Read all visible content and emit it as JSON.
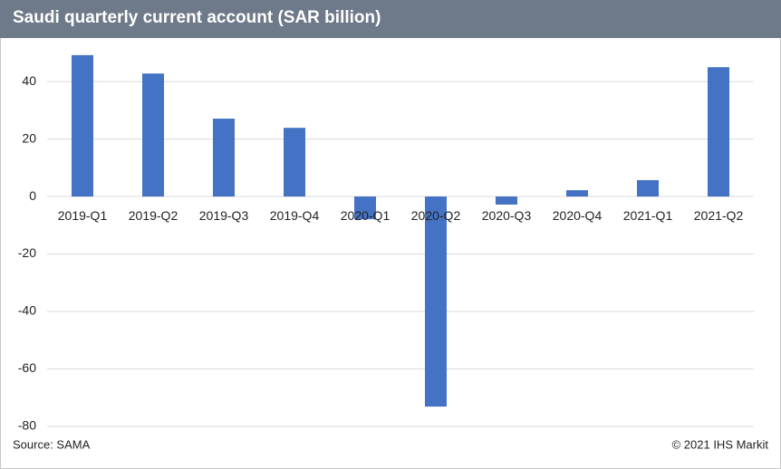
{
  "chart_data": {
    "type": "bar",
    "title": "Saudi quarterly current account (SAR billion)",
    "categories": [
      "2019-Q1",
      "2019-Q2",
      "2019-Q3",
      "2019-Q4",
      "2020-Q1",
      "2020-Q2",
      "2020-Q3",
      "2020-Q4",
      "2021-Q1",
      "2021-Q2"
    ],
    "values": [
      49.2,
      42.8,
      27.1,
      23.9,
      -7.9,
      -73.1,
      -2.8,
      2.2,
      5.7,
      45.0
    ],
    "color": "#4472c4",
    "ylim": [
      -80,
      52
    ],
    "yticks": [
      -80,
      -60,
      -40,
      -20,
      0,
      20,
      40
    ],
    "grid": true,
    "source": "Source: SAMA",
    "copyright": "© 2021 IHS Markit"
  }
}
